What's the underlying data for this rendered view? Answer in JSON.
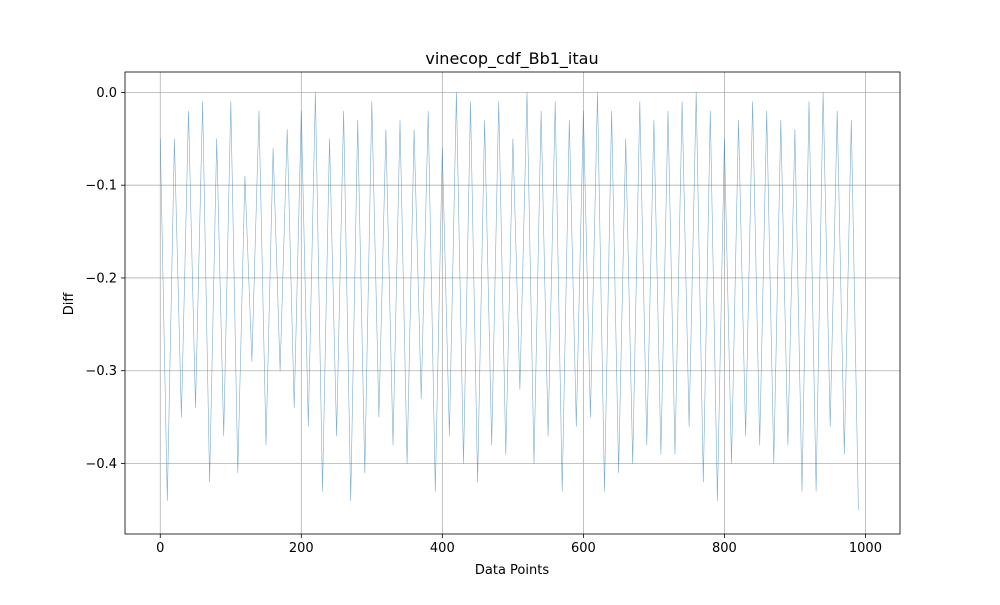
{
  "chart_data": {
    "type": "line",
    "title": "vinecop_cdf_Bb1_itau",
    "xlabel": "Data Points",
    "ylabel": "Diff",
    "xlim": [
      -50,
      1049
    ],
    "ylim": [
      -0.476,
      0.022
    ],
    "x_ticks": [
      0,
      200,
      400,
      600,
      800,
      1000
    ],
    "x_tick_labels": [
      "0",
      "200",
      "400",
      "600",
      "800",
      "1000"
    ],
    "y_ticks": [
      0.0,
      -0.1,
      -0.2,
      -0.3,
      -0.4
    ],
    "y_tick_labels": [
      "0.0",
      "−0.1",
      "−0.2",
      "−0.3",
      "−0.4"
    ],
    "grid": true,
    "line_color": "#1f77b4",
    "line_alpha": 0.6,
    "series": [
      {
        "x_start": 0,
        "x_step": 10,
        "values": [
          -0.05,
          -0.44,
          -0.05,
          -0.35,
          -0.02,
          -0.34,
          -0.01,
          -0.42,
          -0.05,
          -0.37,
          -0.01,
          -0.41,
          -0.09,
          -0.29,
          -0.02,
          -0.38,
          -0.06,
          -0.3,
          -0.04,
          -0.34,
          -0.02,
          -0.36,
          -0.0,
          -0.43,
          -0.05,
          -0.37,
          -0.02,
          -0.44,
          -0.03,
          -0.41,
          -0.01,
          -0.35,
          -0.04,
          -0.38,
          -0.03,
          -0.4,
          -0.04,
          -0.33,
          -0.02,
          -0.43,
          -0.06,
          -0.37,
          -0.0,
          -0.4,
          -0.01,
          -0.42,
          -0.03,
          -0.38,
          -0.01,
          -0.39,
          -0.05,
          -0.32,
          -0.0,
          -0.4,
          -0.02,
          -0.37,
          -0.01,
          -0.43,
          -0.03,
          -0.36,
          -0.02,
          -0.35,
          -0.0,
          -0.43,
          -0.02,
          -0.41,
          -0.05,
          -0.4,
          -0.01,
          -0.38,
          -0.03,
          -0.39,
          -0.02,
          -0.39,
          -0.01,
          -0.36,
          -0.0,
          -0.42,
          -0.02,
          -0.44,
          -0.05,
          -0.4,
          -0.03,
          -0.37,
          -0.01,
          -0.38,
          -0.02,
          -0.4,
          -0.03,
          -0.38,
          -0.04,
          -0.43,
          -0.01,
          -0.43,
          -0.0,
          -0.36,
          -0.02,
          -0.39,
          -0.03,
          -0.45
        ]
      }
    ]
  }
}
